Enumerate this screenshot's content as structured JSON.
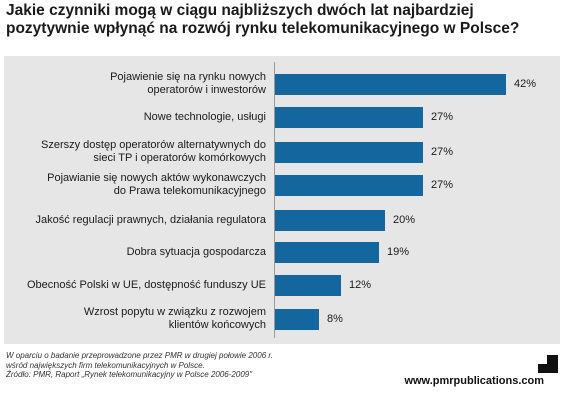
{
  "title_lines": [
    "Jakie czynniki mogą w ciągu najbliższych dwóch lat najbardziej",
    "pozytywnie wpłynąć na rozwój rynku telekomunikacyjnego w Polsce?"
  ],
  "chart_data": {
    "type": "bar",
    "orientation": "horizontal",
    "categories": [
      "Pojawienie się na rynku nowych operatorów i inwestorów",
      "Nowe technologie, usługi",
      "Szerszy dostęp operatorów alternatywnych do sieci TP i operatorów komórkowych",
      "Pojawianie się nowych aktów wykonawczych do Prawa telekomunikacyjnego",
      "Jakość regulacji prawnych, działania regulatora",
      "Dobra sytuacja gospodarcza",
      "Obecność Polski w UE, dostępność funduszy UE",
      "Wzrost popytu w związku z rozwojem klientów końcowych"
    ],
    "label_lines": [
      [
        "Pojawienie się na rynku nowych",
        "operatorów i inwestorów"
      ],
      [
        "Nowe technologie, usługi"
      ],
      [
        "Szerszy dostęp operatorów alternatywnych do",
        "sieci TP i operatorów komórkowych"
      ],
      [
        "Pojawianie się nowych aktów wykonawczych",
        "do Prawa telekomunikacyjnego"
      ],
      [
        "Jakość regulacji prawnych, działania regulatora"
      ],
      [
        "Dobra sytuacja gospodarcza"
      ],
      [
        "Obecność Polski w UE, dostępność funduszy UE"
      ],
      [
        "Wzrost popytu w związku z rozwojem",
        "klientów końcowych"
      ]
    ],
    "values": [
      42,
      27,
      27,
      27,
      20,
      19,
      12,
      8
    ],
    "value_labels": [
      "42%",
      "27%",
      "27%",
      "27%",
      "20%",
      "19%",
      "12%",
      "8%"
    ],
    "unit": "%",
    "xlim": [
      0,
      45
    ],
    "bar_color": "#14669e"
  },
  "footnote_lines": [
    "W oparciu o badanie przeprowadzone przez PMR w drugiej połowie 2006 r.",
    "wśród największych firm telekomunikacyjnych w Polsce.",
    "Źródło: PMR, Raport „Rynek telekomunikacyjny w Polsce 2006-2009\""
  ],
  "website": "www.pmrpublications.com"
}
